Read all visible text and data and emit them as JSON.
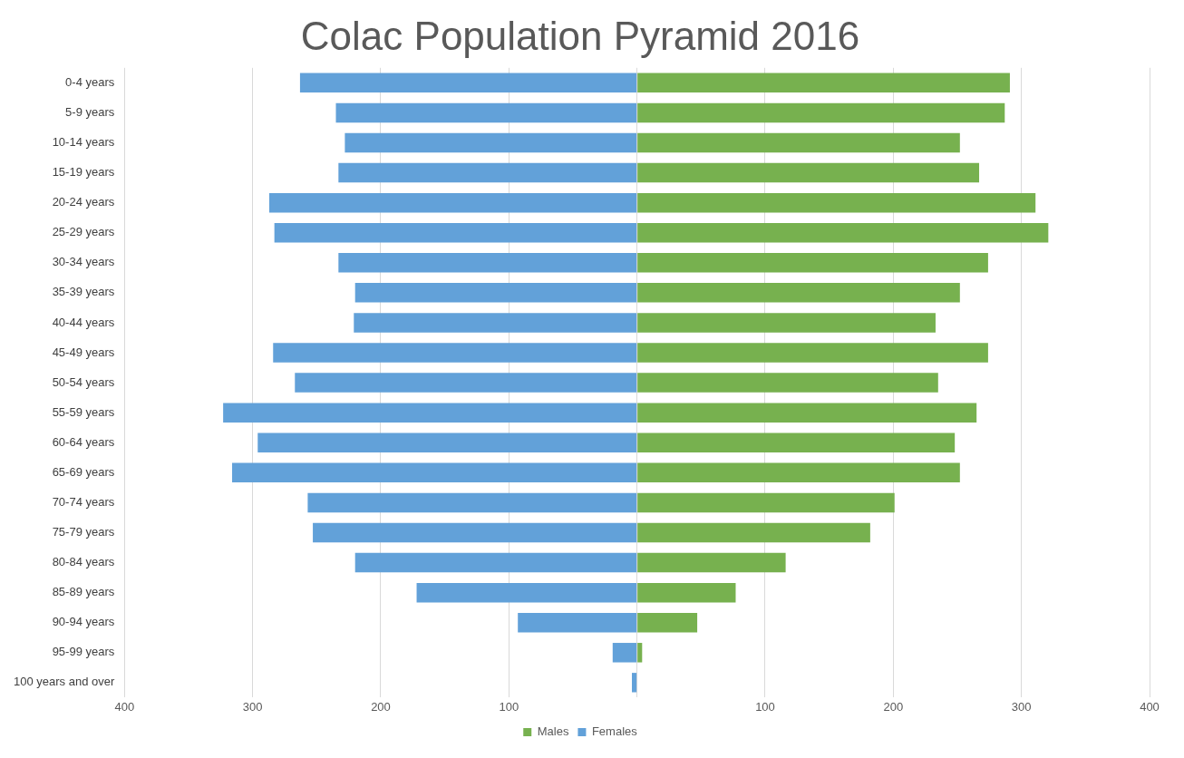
{
  "chart_data": {
    "type": "bar",
    "title": "Colac Population Pyramid 2016",
    "orientation": "horizontal",
    "stacked": true,
    "categories": [
      "0-4 years",
      "5-9 years",
      "10-14 years",
      "15-19 years",
      "20-24 years",
      "25-29 years",
      "30-34 years",
      "35-39 years",
      "40-44 years",
      "45-49 years",
      "50-54 years",
      "55-59 years",
      "60-64 years",
      "65-69 years",
      "70-74 years",
      "75-79 years",
      "80-84 years",
      "85-89 years",
      "90-94 years",
      "95-99 years",
      "100 years and over"
    ],
    "series": [
      {
        "name": "Males",
        "color": "#77b14f",
        "values": [
          291,
          287,
          252,
          267,
          311,
          321,
          274,
          252,
          233,
          274,
          235,
          265,
          248,
          252,
          201,
          182,
          116,
          77,
          47,
          4,
          null
        ]
      },
      {
        "name": "Females",
        "color": "#62a1d9",
        "values": [
          -263,
          -235,
          -228,
          -233,
          -287,
          -283,
          -233,
          -220,
          -221,
          -284,
          -267,
          -323,
          -296,
          -316,
          -257,
          -253,
          -220,
          -172,
          -93,
          -19,
          -4
        ]
      }
    ],
    "xlim": [
      -400,
      400
    ],
    "xticks": [
      {
        "value": -400,
        "label": "400"
      },
      {
        "value": -300,
        "label": "300"
      },
      {
        "value": -200,
        "label": "200"
      },
      {
        "value": -100,
        "label": "100"
      },
      {
        "value": 0,
        "label": null
      },
      100,
      200,
      300,
      400
    ],
    "grid": "x",
    "legend": "bottom"
  }
}
